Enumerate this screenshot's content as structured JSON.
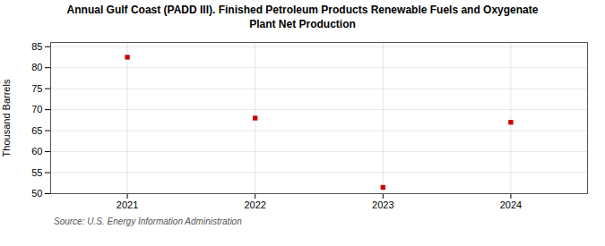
{
  "chart_data": {
    "type": "scatter",
    "title": "Annual Gulf Coast (PADD III). Finished Petroleum Products Renewable Fuels and Oxygenate\nPlant Net Production",
    "ylabel": "Thousand Barrels",
    "source": "Source: U.S. Energy Information Administration",
    "x": [
      2021,
      2022,
      2023,
      2024
    ],
    "values": [
      82.5,
      68.0,
      51.5,
      67.0
    ],
    "color": "#cc0000",
    "marker": "square",
    "xlim": [
      2020.4,
      2024.6
    ],
    "xticks": [
      2021,
      2022,
      2023,
      2024
    ],
    "ylim": [
      50,
      86
    ],
    "yticks": [
      50,
      55,
      60,
      65,
      70,
      75,
      80,
      85
    ],
    "grid": true
  }
}
